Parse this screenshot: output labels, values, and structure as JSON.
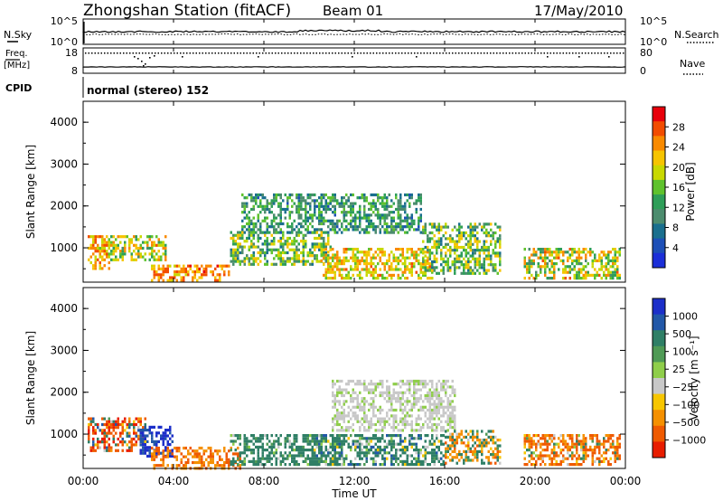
{
  "header": {
    "station": "Zhongshan Station (fitACF)",
    "beam": "Beam 01",
    "date": "17/May/2010"
  },
  "status_panels": {
    "nsky_label": "N.Sky",
    "nsearch_label": "N.Search",
    "freq_label": "Freq.",
    "freq_unit": "[MHz]",
    "nave_label": "Nave",
    "cpid_label": "CPID",
    "cpid_text": "normal (stereo) 152",
    "left_ticks": {
      "noise": [
        "10^5",
        "10^0"
      ],
      "freq": [
        "18",
        "8"
      ]
    },
    "right_ticks": {
      "noise": [
        "10^5",
        "10^0"
      ],
      "nave": [
        "80",
        "0"
      ]
    }
  },
  "axes": {
    "ylabel": "Slant Range [km]",
    "xlabel": "Time UT",
    "yticks": [
      "1000",
      "2000",
      "3000",
      "4000"
    ],
    "xticks": [
      "00:00",
      "04:00",
      "08:00",
      "12:00",
      "16:00",
      "20:00",
      "00:00"
    ]
  },
  "colorbars": {
    "power": {
      "label": "Power [dB]",
      "ticks": [
        "28",
        "24",
        "20",
        "16",
        "12",
        "8",
        "4"
      ],
      "colors": [
        "#e8000b",
        "#f24c00",
        "#f98a00",
        "#f6c400",
        "#c8d800",
        "#5fc22d",
        "#2e9e58",
        "#4c8c6e",
        "#1a6f8e",
        "#1d4fb7",
        "#1c2fd8"
      ]
    },
    "velocity": {
      "label": "Velocity [m s⁻¹]",
      "ticks": [
        "1000",
        "500",
        "100",
        "25",
        "−25",
        "−100",
        "−500",
        "−1000"
      ],
      "colors": [
        "#1c2fc9",
        "#2258a8",
        "#2f7f66",
        "#4f9a55",
        "#8fce4a",
        "#c8c8c8",
        "#f7c600",
        "#f59000",
        "#ef5a00",
        "#e81d00"
      ]
    }
  },
  "chart_data": [
    {
      "type": "heatmap",
      "name": "Power",
      "x_unit": "hours UT",
      "y_unit": "km",
      "xlim": [
        0,
        24
      ],
      "ylim": [
        180,
        4500
      ],
      "clim": [
        0,
        30
      ],
      "regions": [
        {
          "t": [
            0.2,
            1.2
          ],
          "r": [
            500,
            1300
          ],
          "value": 22,
          "spread": 6
        },
        {
          "t": [
            1.2,
            3.7
          ],
          "r": [
            700,
            1300
          ],
          "value": 18,
          "spread": 8
        },
        {
          "t": [
            3.0,
            6.5
          ],
          "r": [
            200,
            600
          ],
          "value": 24,
          "spread": 5
        },
        {
          "t": [
            6.5,
            11.0
          ],
          "r": [
            600,
            1400
          ],
          "value": 14,
          "spread": 8
        },
        {
          "t": [
            7.0,
            15.0
          ],
          "r": [
            1400,
            2300
          ],
          "value": 10,
          "spread": 6
        },
        {
          "t": [
            10.5,
            15.5
          ],
          "r": [
            300,
            1000
          ],
          "value": 20,
          "spread": 6
        },
        {
          "t": [
            15.0,
            18.5
          ],
          "r": [
            400,
            1600
          ],
          "value": 14,
          "spread": 8
        },
        {
          "t": [
            19.5,
            23.8
          ],
          "r": [
            250,
            1000
          ],
          "value": 18,
          "spread": 8
        }
      ]
    },
    {
      "type": "heatmap",
      "name": "Velocity",
      "x_unit": "hours UT",
      "y_unit": "km",
      "xlim": [
        0,
        24
      ],
      "ylim": [
        180,
        4500
      ],
      "clim": [
        -1000,
        1000
      ],
      "regions": [
        {
          "t": [
            0.2,
            2.8
          ],
          "r": [
            600,
            1400
          ],
          "value": -300,
          "spread": 800
        },
        {
          "t": [
            2.5,
            4.0
          ],
          "r": [
            500,
            1200
          ],
          "value": 800,
          "spread": 300
        },
        {
          "t": [
            3.0,
            7.0
          ],
          "r": [
            200,
            700
          ],
          "value": -300,
          "spread": 100
        },
        {
          "t": [
            6.5,
            11.5
          ],
          "r": [
            300,
            1000
          ],
          "value": 150,
          "spread": 150
        },
        {
          "t": [
            11.0,
            16.5
          ],
          "r": [
            1100,
            2300
          ],
          "value": 0,
          "spread": 20
        },
        {
          "t": [
            10.0,
            16.0
          ],
          "r": [
            300,
            1000
          ],
          "value": 150,
          "spread": 200
        },
        {
          "t": [
            16.0,
            18.5
          ],
          "r": [
            300,
            1100
          ],
          "value": -50,
          "spread": 300
        },
        {
          "t": [
            19.5,
            23.8
          ],
          "r": [
            250,
            1000
          ],
          "value": -300,
          "spread": 400
        }
      ]
    }
  ]
}
